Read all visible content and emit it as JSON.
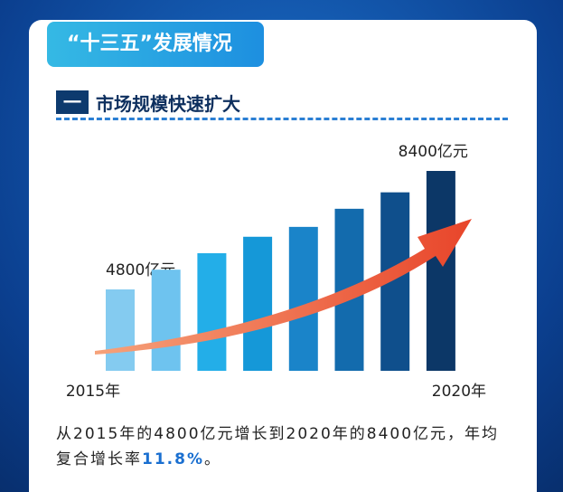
{
  "header": {
    "title": "“十三五”发展情况"
  },
  "section": {
    "number": "一",
    "title": "市场规模快速扩大"
  },
  "chart_data": {
    "type": "bar",
    "categories": [
      "2015年",
      null,
      null,
      null,
      null,
      null,
      null,
      "2020年"
    ],
    "values": [
      4800,
      5400,
      5900,
      6400,
      6700,
      7250,
      7750,
      8400
    ],
    "value_labels": [
      "4800亿元",
      null,
      null,
      null,
      null,
      null,
      null,
      "8400亿元"
    ],
    "colors": [
      "#84cbf0",
      "#6ec3ef",
      "#23aee8",
      "#1598d8",
      "#1a84c9",
      "#136bad",
      "#0f4f8c",
      "#0c3767"
    ]
  },
  "text": {
    "parts": [
      "从2015年的4800亿元增长到2020年的8400亿元，年均复合增长率",
      "11.8%",
      "。"
    ]
  }
}
